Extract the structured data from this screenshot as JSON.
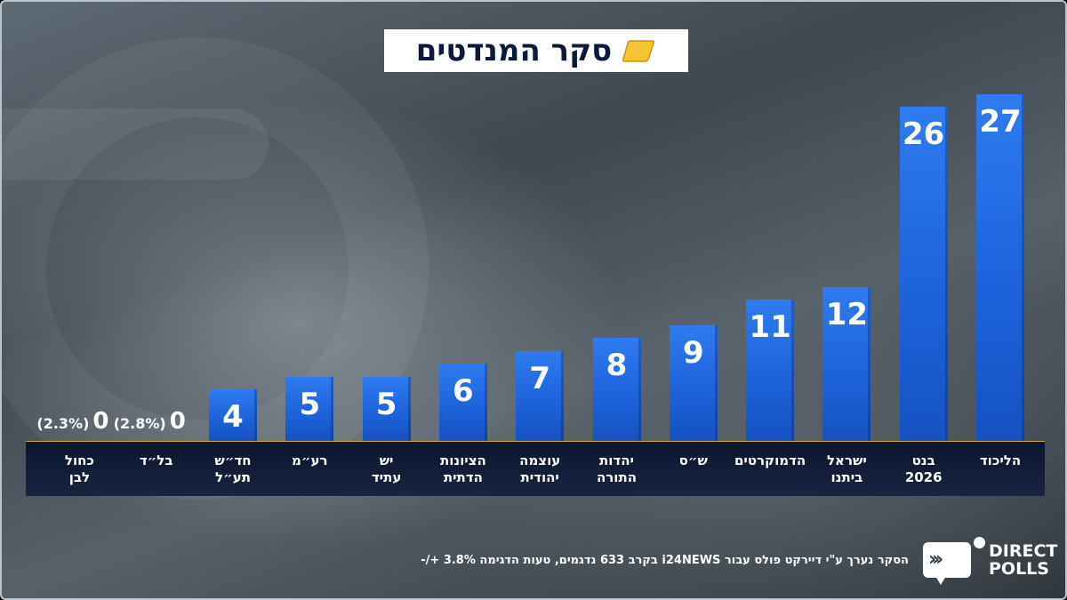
{
  "title": "סקר המנדטים",
  "colors": {
    "bar": "#1e63dc",
    "baseline": "#e0a626",
    "title_icon": "#f6c431",
    "panel": "#0a1630"
  },
  "icons": {
    "title": "yellow-card-icon",
    "logo": "speech-arrows-icon"
  },
  "chart_data": {
    "type": "bar",
    "title": "סקר המנדטים",
    "ylim": [
      0,
      27
    ],
    "grid": false,
    "categories": [
      "הליכוד",
      "בנט 2026",
      "ישראל ביתנו",
      "הדמוקרטים",
      "ש\"ס",
      "יהדות התורה",
      "עוצמה יהודית",
      "הציונות הדתית",
      "יש עתיד",
      "רע\"מ",
      "חד\"ש תע\"ל",
      "בל\"ד",
      "כחול לבן"
    ],
    "category_labels": [
      "הליכוד",
      "בנט\n2026",
      "ישראל\nביתנו",
      "הדמוקרטים",
      "ש״ס",
      "יהדות\nהתורה",
      "עוצמה\nיהודית",
      "הציונות\nהדתית",
      "יש\nעתיד",
      "רע״מ",
      "חד״ש\nתע״ל",
      "בל״ד",
      "כחול\nלבן"
    ],
    "values": [
      27,
      26,
      12,
      11,
      9,
      8,
      7,
      6,
      5,
      5,
      4,
      0,
      0
    ],
    "value_labels": [
      "27",
      "26",
      "12",
      "11",
      "9",
      "8",
      "7",
      "6",
      "5",
      "5",
      "4",
      "0",
      "0"
    ],
    "percent_labels": [
      "",
      "",
      "",
      "",
      "",
      "",
      "",
      "",
      "",
      "",
      "",
      "(2.8%)",
      "(2.3%)"
    ]
  },
  "footnote": "הסקר נערך ע\"י דיירקט פולס עבור i24NEWS בקרב 633 נדגמים, טעות הדגימה 3.8% +/-",
  "logo": {
    "line1": "DIRECT",
    "line2": "POLLS",
    "arrows": "›››"
  }
}
